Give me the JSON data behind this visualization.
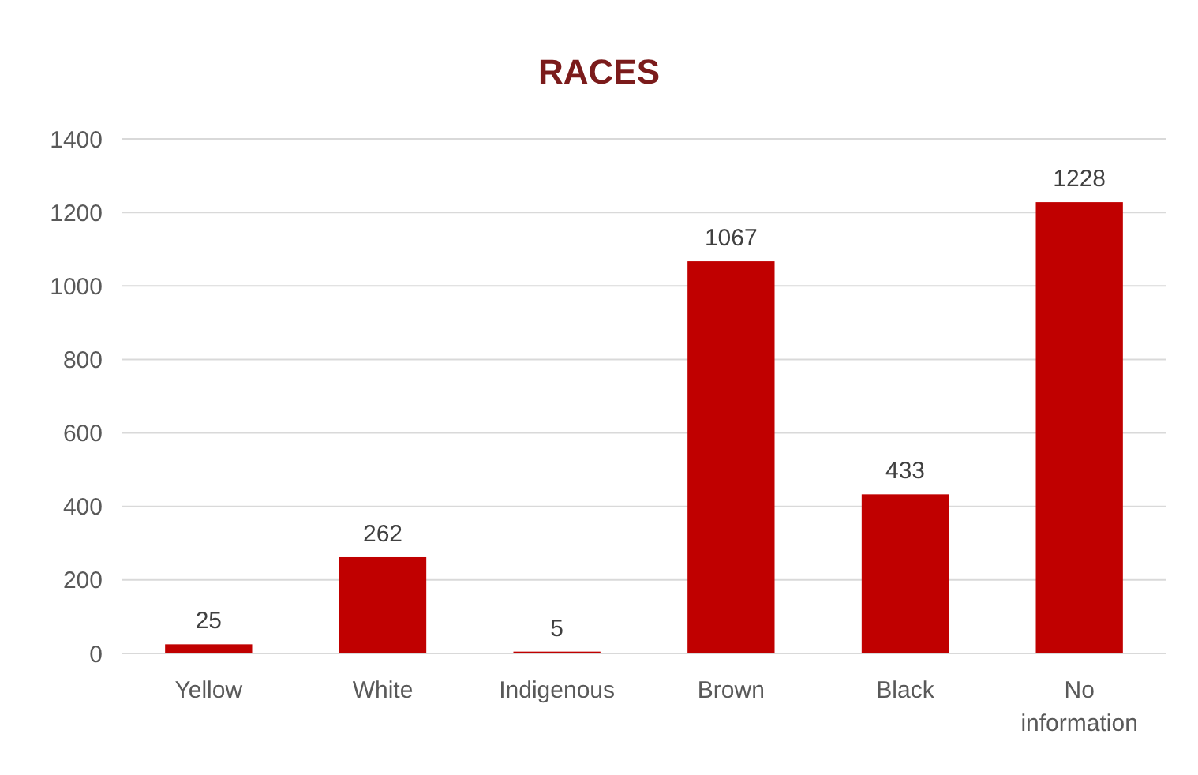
{
  "chart_data": {
    "type": "bar",
    "title": "RACES",
    "categories": [
      "Yellow",
      "White",
      "Indigenous",
      "Brown",
      "Black",
      "No information"
    ],
    "values": [
      25,
      262,
      5,
      1067,
      433,
      1228
    ],
    "color": "#c00000",
    "ylim": [
      0,
      1400
    ],
    "yticks": [
      0,
      200,
      400,
      600,
      800,
      1000,
      1200,
      1400
    ],
    "grid": "y",
    "data_labels": true
  }
}
